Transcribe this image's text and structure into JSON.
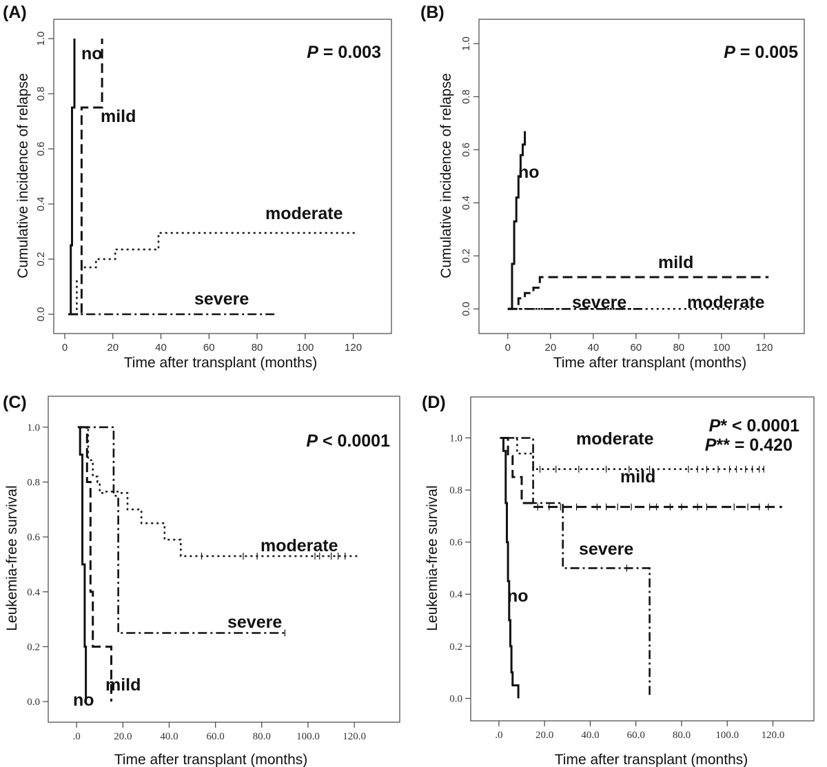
{
  "chart_data": [
    {
      "id": "A",
      "type": "line",
      "panel_label": "(A)",
      "xlabel": "Time after transplant (months)",
      "ylabel": "Cumulative incidence of relapse",
      "xlim": [
        0,
        125
      ],
      "ylim": [
        0,
        1.02
      ],
      "xticks": [
        0,
        20,
        40,
        60,
        80,
        100,
        120
      ],
      "yticks": [
        0.0,
        0.2,
        0.4,
        0.6,
        0.8,
        1.0
      ],
      "xtick_labels": [
        "0",
        "20",
        "40",
        "60",
        "80",
        "100",
        "120"
      ],
      "ytick_labels": [
        "0.0",
        "0.2",
        "0.4",
        "0.6",
        "0.8",
        "1.0"
      ],
      "annotation": {
        "italic": "P",
        "rest": " = 0.003"
      },
      "series": [
        {
          "name": "no",
          "style": "solid",
          "step": true,
          "x": [
            1.5,
            2.5,
            3,
            4
          ],
          "y": [
            0,
            0.25,
            0.75,
            1.0
          ]
        },
        {
          "name": "mild",
          "style": "dashed",
          "step": true,
          "x": [
            1.5,
            5.5,
            7,
            15,
            15.5
          ],
          "y": [
            0,
            0,
            0.75,
            0.75,
            1.0
          ]
        },
        {
          "name": "moderate",
          "style": "dotted",
          "step": true,
          "x": [
            4.5,
            5,
            7,
            13,
            21,
            39,
            122
          ],
          "y": [
            0,
            0.12,
            0.17,
            0.2,
            0.235,
            0.295,
            0.295
          ]
        },
        {
          "name": "severe",
          "style": "dashdot",
          "step": true,
          "x": [
            1.5,
            88
          ],
          "y": [
            0,
            0
          ]
        }
      ]
    },
    {
      "id": "B",
      "type": "line",
      "panel_label": "(B)",
      "xlabel": "Time after transplant (months)",
      "ylabel": "Cumulative incidence of relapse",
      "xlim": [
        -8,
        130
      ],
      "ylim": [
        -0.02,
        1.04
      ],
      "xticks": [
        0,
        20,
        40,
        60,
        80,
        100,
        120
      ],
      "yticks": [
        0.0,
        0.2,
        0.4,
        0.6,
        0.8,
        1.0
      ],
      "xtick_labels": [
        "0",
        "20",
        "40",
        "60",
        "80",
        "100",
        "120"
      ],
      "ytick_labels": [
        "0.0",
        "0.2",
        "0.4",
        "0.6",
        "0.8",
        "1.0"
      ],
      "annotation": {
        "italic": "P",
        "rest": " = 0.005"
      },
      "series": [
        {
          "name": "no",
          "style": "solid",
          "step": true,
          "x": [
            0,
            2,
            3,
            4,
            5,
            6,
            7,
            8
          ],
          "y": [
            0,
            0.17,
            0.33,
            0.42,
            0.5,
            0.58,
            0.62,
            0.67
          ]
        },
        {
          "name": "mild",
          "style": "dashed",
          "step": true,
          "x": [
            0,
            5,
            8,
            12,
            15,
            122
          ],
          "y": [
            0,
            0.04,
            0.06,
            0.08,
            0.12,
            0.12
          ]
        },
        {
          "name": "severe",
          "style": "dashdot",
          "step": true,
          "x": [
            0,
            65
          ],
          "y": [
            0,
            0
          ]
        },
        {
          "name": "moderate",
          "style": "dotted",
          "step": true,
          "x": [
            0,
            115
          ],
          "y": [
            0,
            0
          ]
        }
      ]
    },
    {
      "id": "C",
      "type": "line",
      "panel_label": "(C)",
      "xlabel": "Time after transplant (months)",
      "ylabel": "Leukemia-free survival",
      "xlim": [
        -6,
        128
      ],
      "ylim": [
        -0.02,
        1.07
      ],
      "xticks": [
        0,
        20,
        40,
        60,
        80,
        100,
        120
      ],
      "yticks": [
        0.0,
        0.2,
        0.4,
        0.6,
        0.8,
        1.0
      ],
      "xtick_labels": [
        ".0",
        "20.0",
        "40.0",
        "60.0",
        "80.0",
        "100.0",
        "120.0"
      ],
      "ytick_labels": [
        "0.0",
        "0.2",
        "0.4",
        "0.6",
        "0.8",
        "1.0"
      ],
      "annotation": {
        "italic": "P",
        "rest": " < 0.0001"
      },
      "series": [
        {
          "name": "no",
          "style": "solid",
          "step": true,
          "x": [
            0.5,
            1.5,
            2.5,
            3.5,
            4
          ],
          "y": [
            1.0,
            0.9,
            0.5,
            0.2,
            0
          ]
        },
        {
          "name": "mild",
          "style": "dashed",
          "step": true,
          "x": [
            1,
            4.5,
            6,
            7,
            15
          ],
          "y": [
            1.0,
            0.8,
            0.4,
            0.2,
            0
          ]
        },
        {
          "name": "moderate",
          "style": "dotted",
          "step": true,
          "x": [
            1,
            5,
            7,
            9,
            10,
            12,
            19,
            22,
            28,
            38,
            40,
            45,
            48,
            122
          ],
          "y": [
            1.0,
            0.88,
            0.82,
            0.8,
            0.76,
            0.765,
            0.76,
            0.7,
            0.65,
            0.59,
            0.59,
            0.53,
            0.53,
            0.53
          ]
        },
        {
          "name": "severe",
          "style": "dashdot",
          "step": true,
          "x": [
            2,
            10,
            16,
            18,
            90
          ],
          "y": [
            1.0,
            1.0,
            0.75,
            0.25,
            0.25
          ]
        }
      ]
    },
    {
      "id": "D",
      "type": "line",
      "panel_label": "(D)",
      "xlabel": "Time after transplant (months)",
      "ylabel": "Leukemia-free survival",
      "xlim": [
        -6,
        131
      ],
      "ylim": [
        -0.02,
        1.07
      ],
      "xticks": [
        0,
        20,
        40,
        60,
        80,
        100,
        120
      ],
      "yticks": [
        0.0,
        0.2,
        0.4,
        0.6,
        0.8,
        1.0
      ],
      "xtick_labels": [
        ".0",
        "20.0",
        "40.0",
        "60.0",
        "80.0",
        "100.0",
        "120.0"
      ],
      "ytick_labels": [
        "0.0",
        "0.2",
        "0.4",
        "0.6",
        "0.8",
        "1.0"
      ],
      "annotation_lines": [
        {
          "italic": "P",
          "rest": "* < 0.0001"
        },
        {
          "italic": "P",
          "rest": "** = 0.420"
        }
      ],
      "series": [
        {
          "name": "no",
          "style": "solid",
          "step": true,
          "x": [
            0.5,
            2,
            3,
            3.5,
            4,
            4.5,
            5,
            5.5,
            6,
            6.5,
            8.5
          ],
          "y": [
            1.0,
            0.95,
            0.75,
            0.6,
            0.45,
            0.3,
            0.2,
            0.1,
            0.05,
            0.05,
            0
          ]
        },
        {
          "name": "mild",
          "style": "dashed",
          "step": true,
          "x": [
            1,
            4,
            6,
            10,
            15,
            124
          ],
          "y": [
            1.0,
            0.93,
            0.85,
            0.75,
            0.735,
            0.735
          ]
        },
        {
          "name": "moderate",
          "style": "dotted",
          "step": true,
          "x": [
            1,
            8,
            15,
            117
          ],
          "y": [
            1.0,
            0.94,
            0.88,
            0.88
          ]
        },
        {
          "name": "severe",
          "style": "dashdot",
          "step": true,
          "x": [
            2,
            15,
            28,
            66
          ],
          "y": [
            1.0,
            0.75,
            0.5,
            0
          ]
        }
      ]
    }
  ]
}
